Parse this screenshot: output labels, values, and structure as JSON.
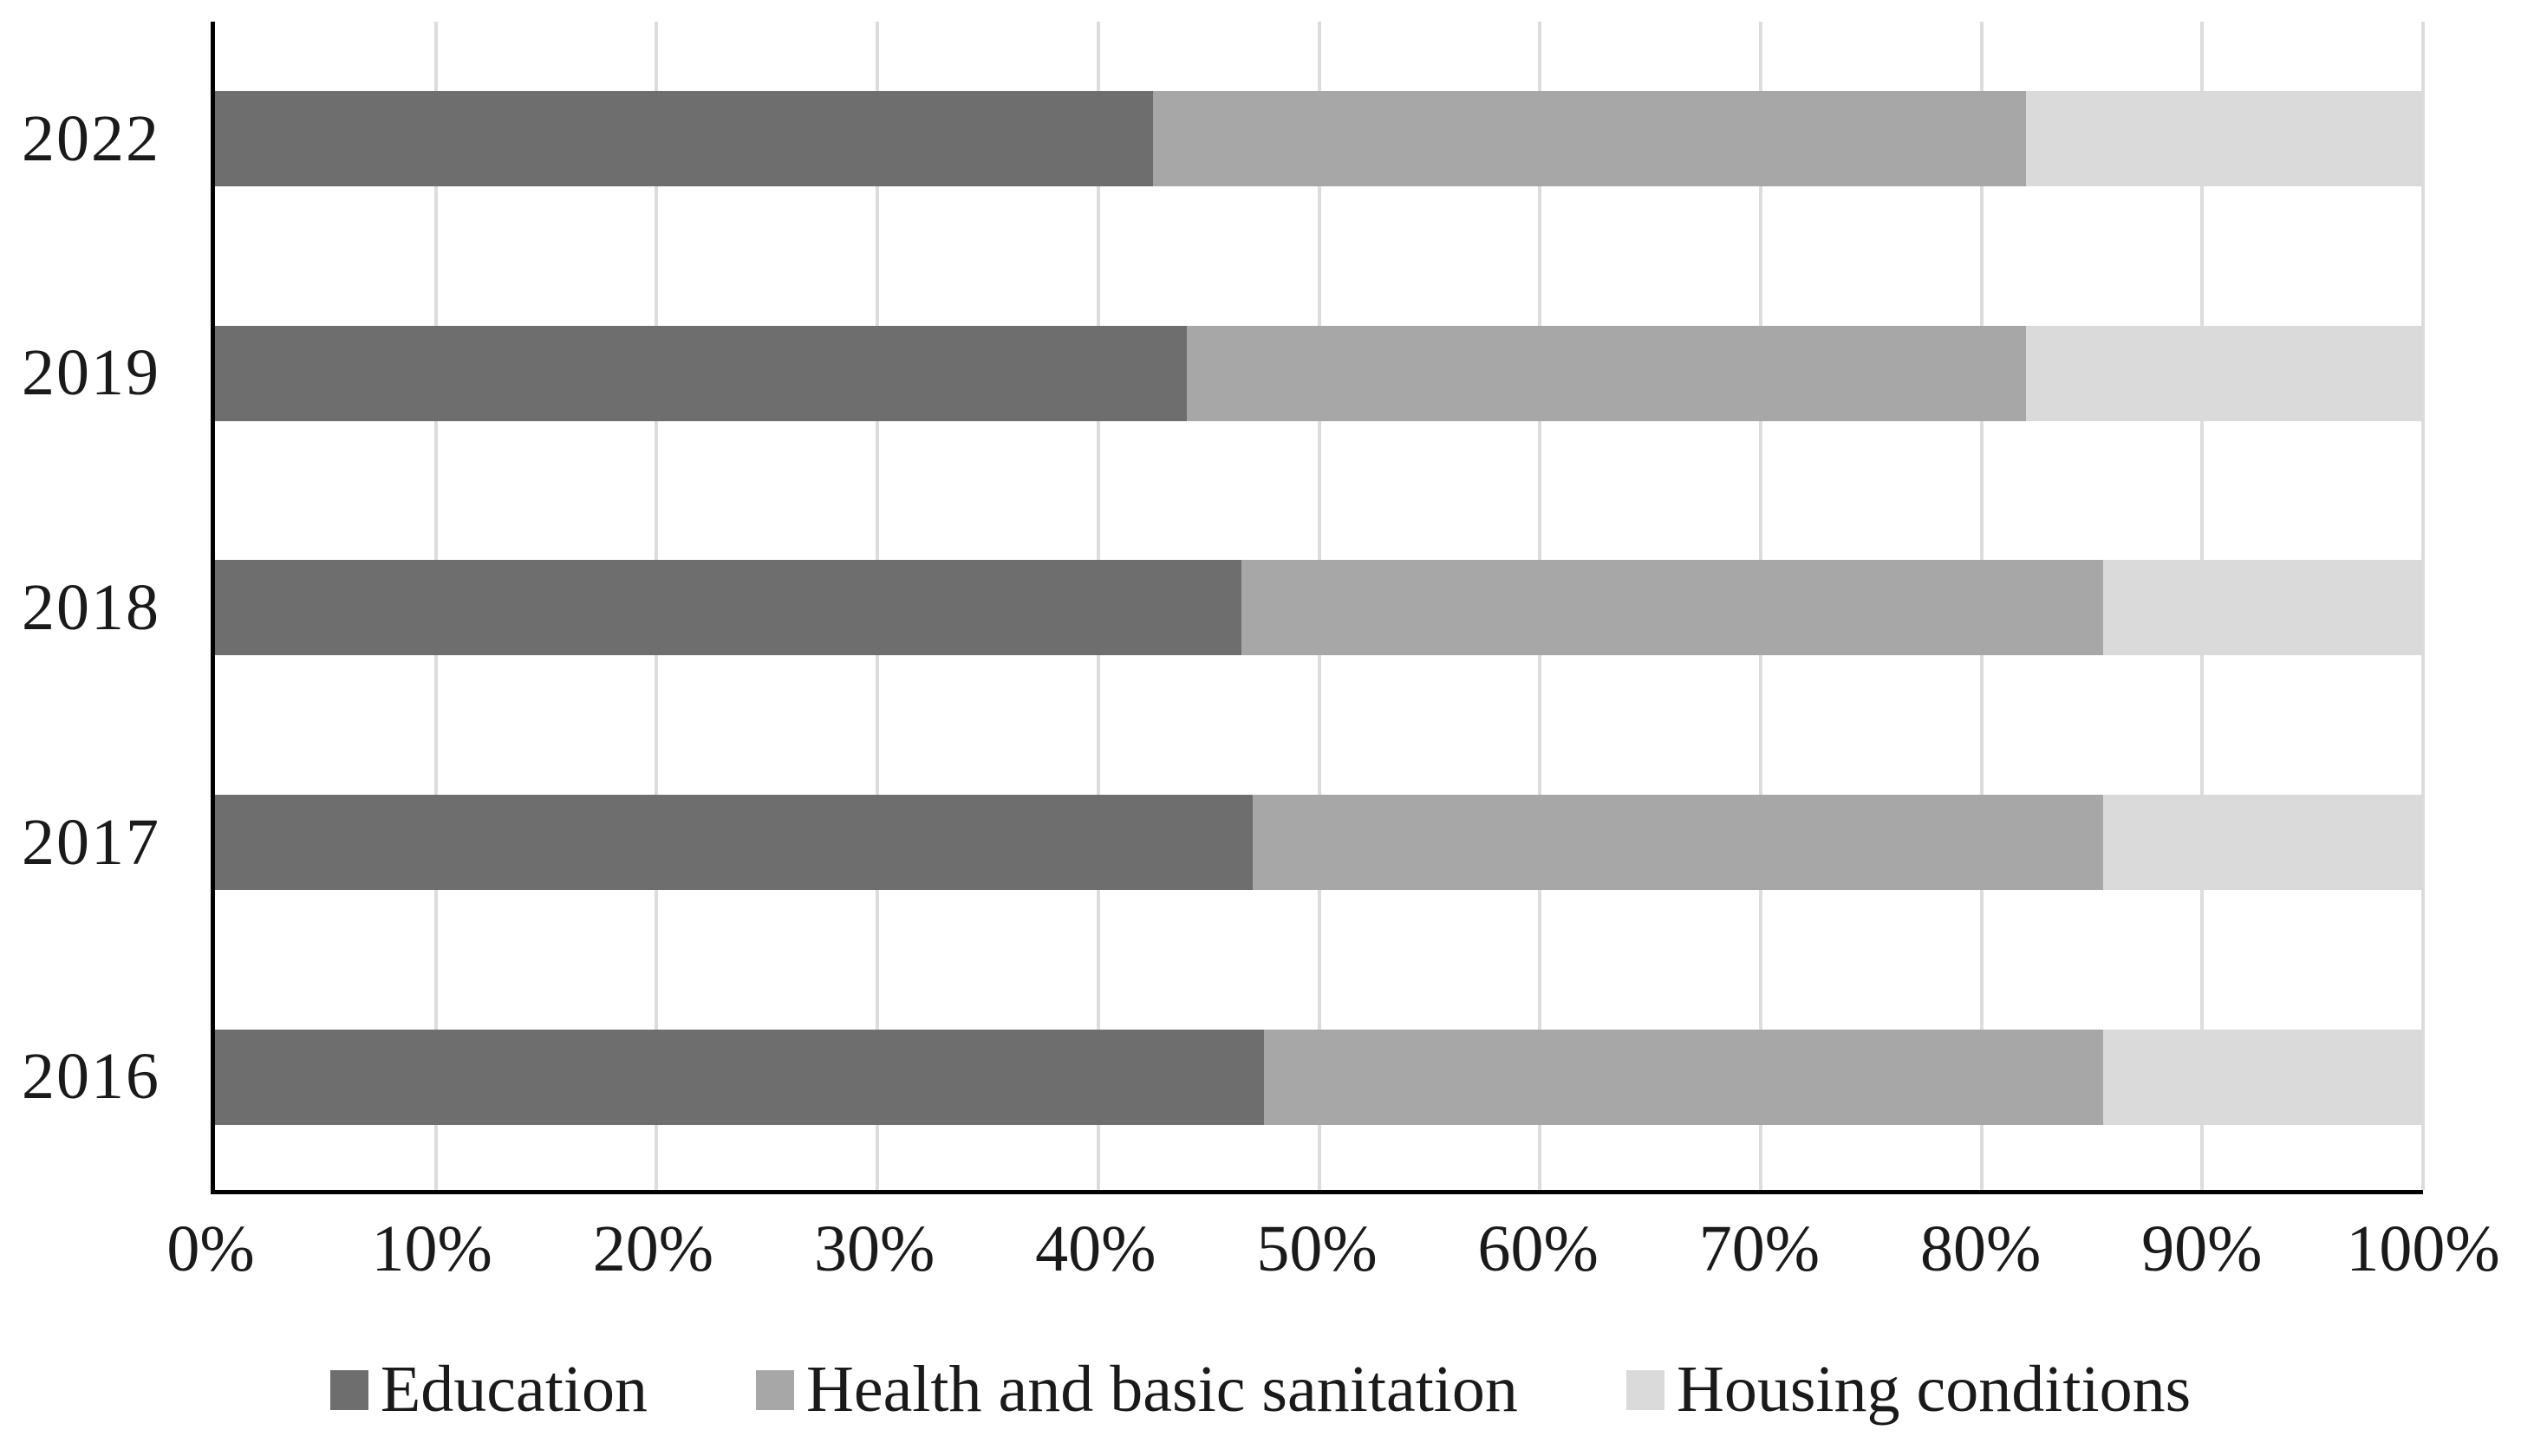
{
  "chart_data": {
    "type": "bar",
    "orientation": "horizontal",
    "stacked": true,
    "stacked_total": 100,
    "title": "",
    "xlabel": "",
    "ylabel": "",
    "categories": [
      "2022",
      "2019",
      "2018",
      "2017",
      "2016"
    ],
    "series": [
      {
        "name": "Education",
        "color": "#6E6E6E",
        "values": [
          42.5,
          44,
          46.5,
          47,
          47.5
        ]
      },
      {
        "name": "Health and basic sanitation",
        "color": "#A7A7A7",
        "values": [
          39.5,
          38,
          39,
          38.5,
          38
        ]
      },
      {
        "name": "Housing conditions",
        "color": "#DADADA",
        "values": [
          18,
          18,
          14.5,
          14.5,
          14.5
        ]
      }
    ],
    "xlim": [
      0,
      100
    ],
    "x_tick_step": 10,
    "x_ticks": [
      "0%",
      "10%",
      "20%",
      "30%",
      "40%",
      "50%",
      "60%",
      "70%",
      "80%",
      "90%",
      "100%"
    ],
    "grid": "vertical",
    "gridline_color": "#DCDCDC",
    "axis_color": "#000000",
    "text_color": "#1a1a1a",
    "legend_position": "bottom"
  }
}
